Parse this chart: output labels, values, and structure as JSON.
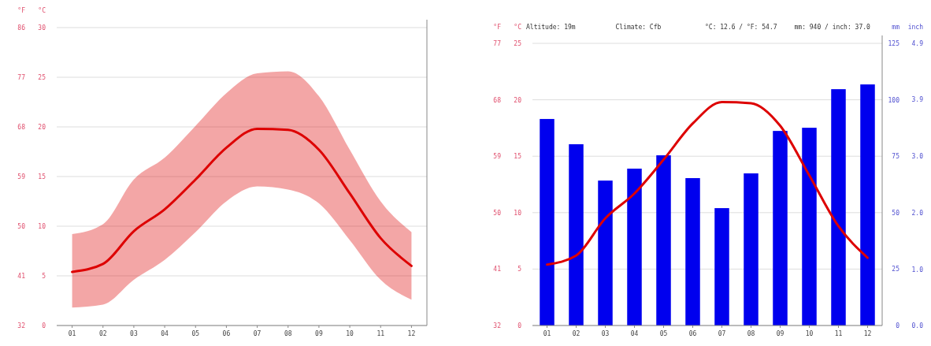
{
  "chart_data": [
    {
      "type": "line",
      "categories": [
        "01",
        "02",
        "03",
        "04",
        "05",
        "06",
        "07",
        "08",
        "09",
        "10",
        "11",
        "12"
      ],
      "ylabel": "°C",
      "y2label": "°F",
      "ylim": [
        0,
        30
      ],
      "yticks": [
        0,
        5,
        10,
        15,
        20,
        25,
        30
      ],
      "y2lim": [
        32,
        86
      ],
      "y2ticks": [
        32,
        41,
        50,
        59,
        68,
        77,
        86
      ],
      "grid": "y",
      "series": [
        {
          "color": "#dd0000",
          "values": [
            5.4,
            6.2,
            9.5,
            11.7,
            14.7,
            17.9,
            19.8,
            19.7,
            17.7,
            13.3,
            8.8,
            6.0
          ],
          "lower": [
            1.8,
            2.1,
            4.6,
            6.6,
            9.4,
            12.5,
            14.0,
            13.7,
            12.3,
            8.6,
            4.6,
            2.6
          ],
          "upper": [
            9.2,
            10.2,
            14.7,
            16.9,
            20.1,
            23.4,
            25.4,
            25.6,
            23.1,
            17.7,
            12.5,
            9.4
          ]
        }
      ]
    },
    {
      "type": "bar",
      "categories": [
        "01",
        "02",
        "03",
        "04",
        "05",
        "06",
        "07",
        "08",
        "09",
        "10",
        "11",
        "12"
      ],
      "ylabel": "°C",
      "y2label": "mm",
      "y3label": "inch",
      "ylim": [
        0,
        25
      ],
      "yticks": [
        0,
        5,
        10,
        15,
        20,
        25
      ],
      "y2lim": [
        0,
        125
      ],
      "y2ticks": [
        0,
        25,
        50,
        75,
        100,
        125
      ],
      "y3lim": [
        0,
        4.92
      ],
      "y3ticks": [
        {
          "value": 0,
          "label": "0.0"
        },
        {
          "value": 0.98,
          "label": "1.0"
        },
        {
          "value": 1.97,
          "label": "2.0"
        },
        {
          "value": 2.95,
          "label": "3.0"
        },
        {
          "value": 3.94,
          "label": "3.9"
        },
        {
          "value": 4.92,
          "label": "4.9"
        }
      ],
      "grid": "y",
      "annotations": [
        "°F",
        "32",
        "41",
        "50",
        "59",
        "68",
        "77",
        "Altitude: 19m",
        "Climate: Cfb",
        "°C: 12.6 / °F: 54.7",
        "mm: 940 / inch: 37.0"
      ],
      "series": [
        {
          "axis": "y2",
          "color": "#0000ee",
          "values": [
            91.5,
            80.3,
            64.2,
            69.5,
            75.4,
            65.3,
            52.0,
            67.4,
            86.2,
            87.6,
            104.7,
            106.8
          ]
        },
        {
          "type": "line",
          "color": "#dd0000",
          "values": [
            5.4,
            6.2,
            9.5,
            11.7,
            14.7,
            17.9,
            19.8,
            19.7,
            17.7,
            13.3,
            8.8,
            6.0
          ]
        }
      ]
    }
  ]
}
